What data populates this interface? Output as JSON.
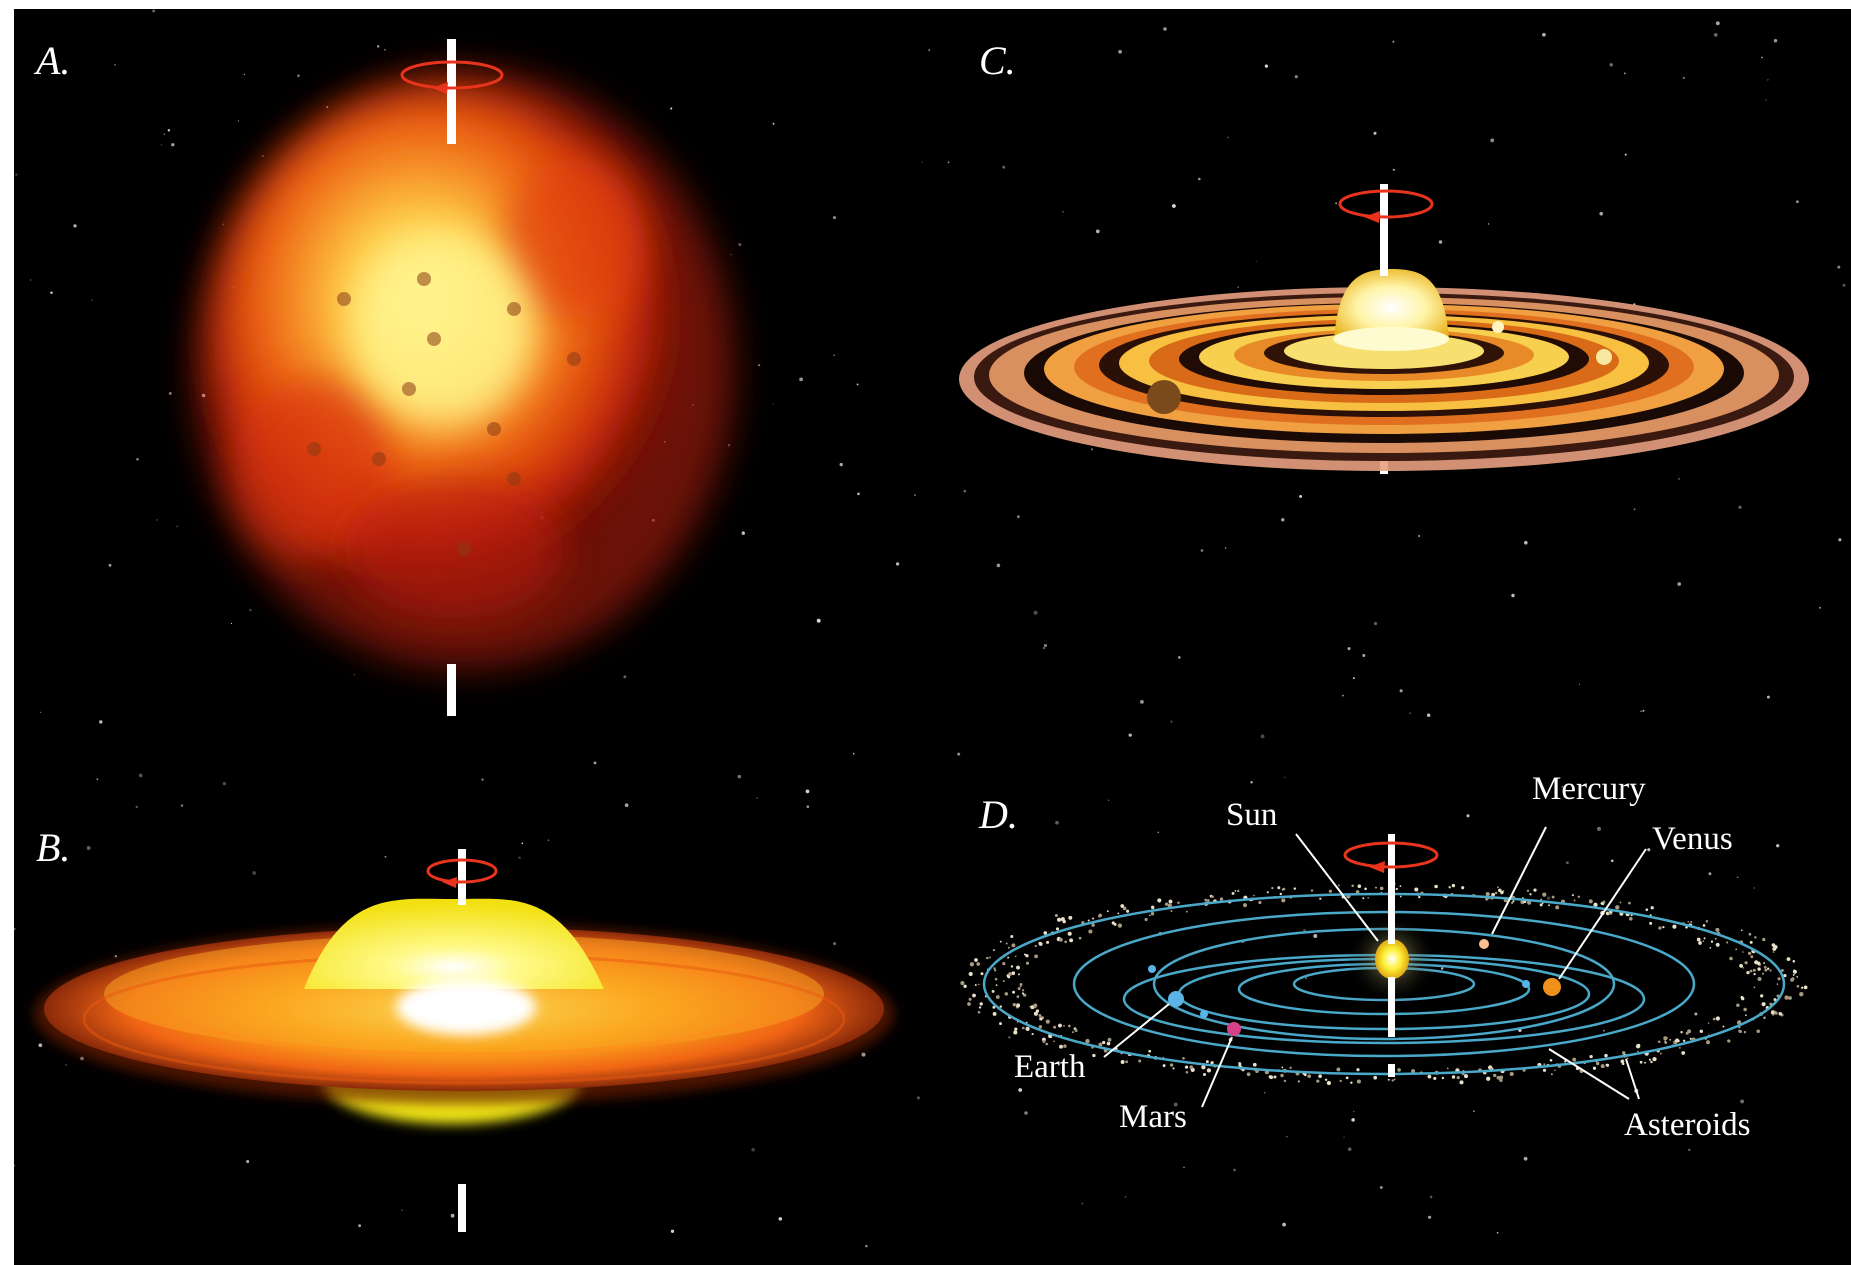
{
  "panels": {
    "a": {
      "label": "A."
    },
    "b": {
      "label": "B."
    },
    "c": {
      "label": "C."
    },
    "d": {
      "label": "D."
    }
  },
  "callouts": {
    "sun": "Sun",
    "mercury": "Mercury",
    "venus": "Venus",
    "earth": "Earth",
    "mars": "Mars",
    "asteroids": "Asteroids"
  },
  "colors": {
    "background": "#000000",
    "rotation_arrow": "#e8341c",
    "axis": "#ffffff",
    "orbit": "#4aa8c8",
    "nebula_outer": "#c2200a",
    "nebula_core": "#fff27a",
    "disk_orange": "#f07a1a",
    "sun": "#fff23a"
  },
  "icons": [
    "rotation-arrow-icon",
    "rotation-axis"
  ]
}
